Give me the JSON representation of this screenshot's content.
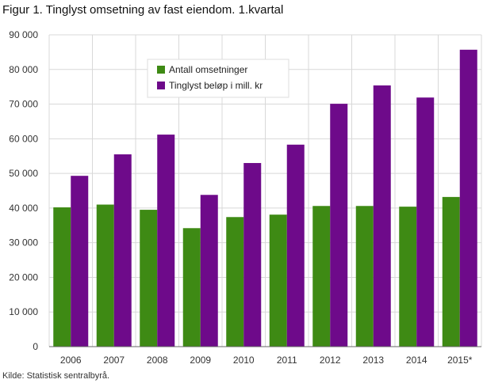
{
  "title": "Figur 1. Tinglyst omsetning av fast eiendom. 1.kvartal",
  "source": "Kilde: Statistisk sentralbyrå.",
  "colors": {
    "series1": "#3e8a14",
    "series2": "#6e0a8a",
    "grid": "#d8d8d8"
  },
  "chart_data": {
    "type": "bar",
    "title": "Figur 1. Tinglyst omsetning av fast eiendom. 1.kvartal",
    "xlabel": "",
    "ylabel": "",
    "categories": [
      "2006",
      "2007",
      "2008",
      "2009",
      "2010",
      "2011",
      "2012",
      "2013",
      "2014",
      "2015*"
    ],
    "series": [
      {
        "name": "Antall omsetninger",
        "values": [
          40200,
          41000,
          39500,
          34200,
          37400,
          38100,
          40600,
          40600,
          40400,
          43200
        ]
      },
      {
        "name": "Tinglyst beløp i mill. kr",
        "values": [
          49300,
          55500,
          61200,
          43800,
          53000,
          58300,
          70100,
          75400,
          71900,
          85700
        ]
      }
    ],
    "ylim": [
      0,
      90000
    ],
    "yticks": [
      0,
      10000,
      20000,
      30000,
      40000,
      50000,
      60000,
      70000,
      80000,
      90000
    ],
    "ytick_labels": [
      "0",
      "10 000",
      "20 000",
      "30 000",
      "40 000",
      "50 000",
      "60 000",
      "70 000",
      "80 000",
      "90 000"
    ],
    "grid": true,
    "legend_position": "top-left"
  }
}
